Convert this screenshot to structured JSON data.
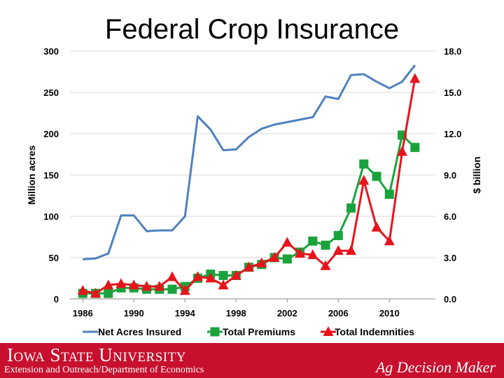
{
  "chart_data": {
    "type": "line",
    "title": "Federal Crop Insurance",
    "ylabel_left": "Million acres",
    "ylabel_right": "$ billion",
    "ylim_left": [
      0,
      300
    ],
    "ylim_right": [
      0,
      18
    ],
    "yticks_left": [
      "0",
      "50",
      "100",
      "150",
      "200",
      "250",
      "300"
    ],
    "yticks_right": [
      "0.0",
      "3.0",
      "6.0",
      "9.0",
      "12.0",
      "15.0",
      "18.0"
    ],
    "xlim": [
      1985,
      2013.6
    ],
    "xticks": [
      "1986",
      "1990",
      "1994",
      "1998",
      "2002",
      "2006",
      "2010"
    ],
    "series": [
      {
        "name": "Net Acres Insured",
        "axis": "left",
        "color": "#4f81bd",
        "marker": "none",
        "x": [
          1986,
          1987,
          1988,
          1989,
          1990,
          1991,
          1992,
          1993,
          1994,
          1995,
          1996,
          1997,
          1998,
          1999,
          2000,
          2001,
          2002,
          2003,
          2004,
          2005,
          2006,
          2007,
          2008,
          2009,
          2010,
          2011,
          2012
        ],
        "values": [
          48,
          49,
          55,
          101,
          101,
          82,
          83,
          83,
          100,
          221,
          205,
          180,
          181,
          196,
          206,
          211,
          214,
          217,
          220,
          245,
          242,
          271,
          272,
          263,
          255,
          263,
          283
        ]
      },
      {
        "name": "Total Premiums",
        "axis": "right",
        "color": "#1aa33d",
        "marker": "square",
        "x": [
          1986,
          1987,
          1988,
          1989,
          1990,
          1991,
          1992,
          1993,
          1994,
          1995,
          1996,
          1997,
          1998,
          1999,
          2000,
          2001,
          2002,
          2003,
          2004,
          2005,
          2006,
          2007,
          2008,
          2009,
          2010,
          2011,
          2012
        ],
        "values": [
          0.4,
          0.4,
          0.4,
          0.8,
          0.8,
          0.7,
          0.7,
          0.7,
          0.9,
          1.5,
          1.8,
          1.7,
          1.7,
          2.3,
          2.5,
          3.0,
          2.9,
          3.4,
          4.2,
          3.9,
          4.6,
          6.6,
          9.8,
          8.9,
          7.6,
          11.9,
          11.0
        ]
      },
      {
        "name": "Total Indemnities",
        "axis": "right",
        "color": "#e8141b",
        "marker": "triangle",
        "x": [
          1986,
          1987,
          1988,
          1989,
          1990,
          1991,
          1992,
          1993,
          1994,
          1995,
          1996,
          1997,
          1998,
          1999,
          2000,
          2001,
          2002,
          2003,
          2004,
          2005,
          2006,
          2007,
          2008,
          2009,
          2010,
          2011,
          2012
        ],
        "values": [
          0.6,
          0.4,
          1.0,
          1.1,
          1.0,
          0.9,
          0.9,
          1.6,
          0.6,
          1.6,
          1.5,
          1.0,
          1.7,
          2.3,
          2.6,
          3.0,
          4.1,
          3.3,
          3.2,
          2.4,
          3.5,
          3.5,
          8.6,
          5.2,
          4.2,
          10.7,
          16.0
        ]
      }
    ]
  },
  "footer": {
    "university": "Iowa State University",
    "department": "Extension and Outreach/Department of Economics",
    "brand": "Ag Decision Maker"
  }
}
